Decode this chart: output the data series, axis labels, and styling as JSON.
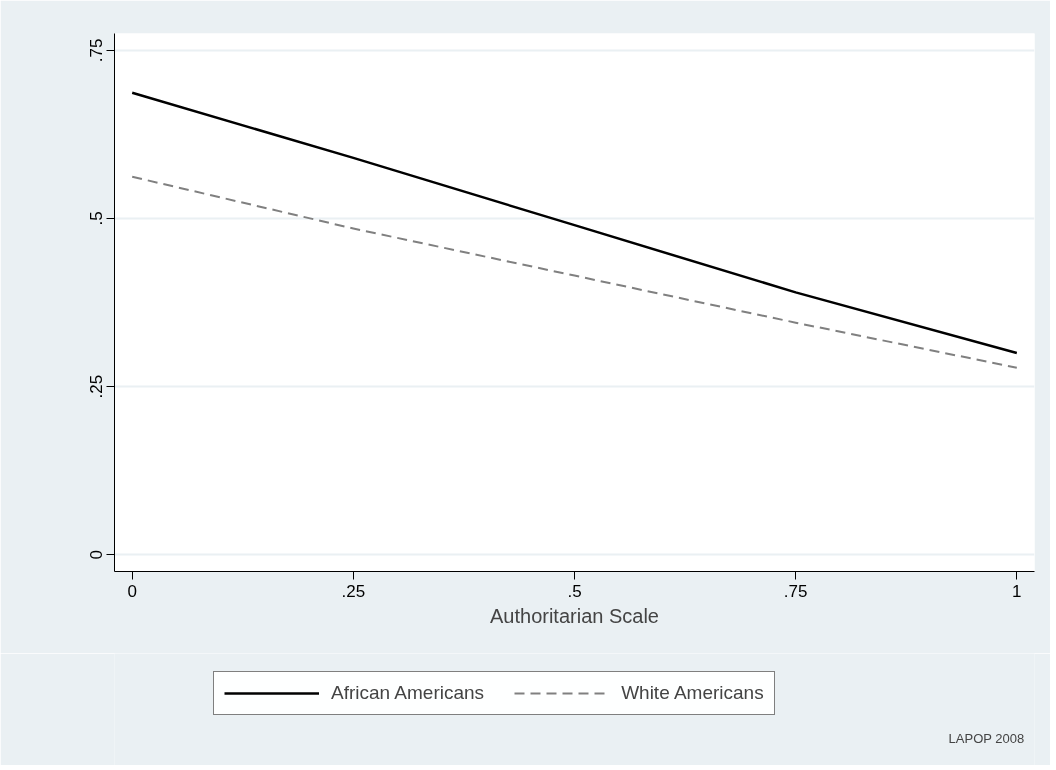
{
  "chart_data": {
    "type": "line",
    "xlabel": "Authoritarian Scale",
    "x": [
      0,
      0.25,
      0.5,
      0.75,
      1
    ],
    "series": [
      {
        "name": "African Americans",
        "color": "#000000",
        "values": [
          0.687,
          0.59,
          0.49,
          0.39,
          0.3
        ],
        "line_style": "solid"
      },
      {
        "name": "White Americans",
        "color": "#808080",
        "values": [
          0.562,
          0.485,
          0.415,
          0.345,
          0.278
        ],
        "line_style": "dashed"
      }
    ],
    "xlim": [
      -0.02,
      1.02
    ],
    "ylim": [
      -0.025,
      0.775
    ],
    "xticks": [
      0,
      {
        "value": 0.25,
        "label": ".25"
      },
      {
        "value": 0.5,
        "label": ".5"
      },
      {
        "value": 0.75,
        "label": ".75"
      },
      1
    ],
    "yticks": [
      0,
      {
        "value": 0.25,
        "label": ".25"
      },
      {
        "value": 0.5,
        "label": ".5"
      },
      {
        "value": 0.75,
        "label": ".75"
      }
    ],
    "grid": "y",
    "legend": "bottom",
    "marker": "none",
    "annotations": [
      "LAPOP 2008"
    ]
  }
}
